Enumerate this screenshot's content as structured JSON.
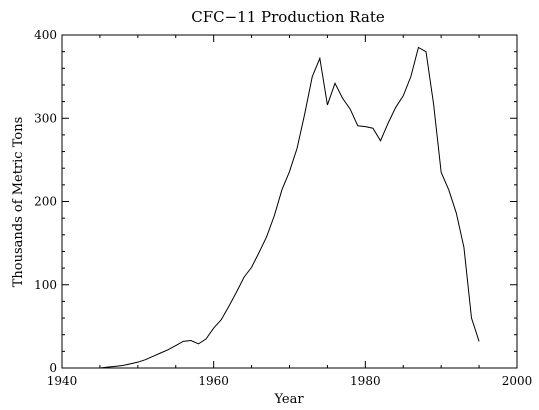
{
  "chart_data": {
    "type": "line",
    "title": "CFC−11 Production Rate",
    "xlabel": "Year",
    "ylabel": "Thousands of Metric Tons",
    "xlim": [
      1940,
      2000
    ],
    "ylim": [
      0,
      400
    ],
    "x_ticks": [
      1940,
      1960,
      1980,
      2000
    ],
    "y_ticks": [
      0,
      100,
      200,
      300,
      400
    ],
    "grid": false,
    "series": [
      {
        "x": [
          1940,
          1941,
          1942,
          1943,
          1944,
          1945,
          1946,
          1947,
          1948,
          1949,
          1950,
          1951,
          1952,
          1953,
          1954,
          1955,
          1956,
          1957,
          1958,
          1959,
          1960,
          1961,
          1962,
          1963,
          1964,
          1965,
          1966,
          1967,
          1968,
          1969,
          1970,
          1971,
          1972,
          1973,
          1974,
          1975,
          1976,
          1977,
          1978,
          1979,
          1980,
          1981,
          1982,
          1983,
          1984,
          1985,
          1986,
          1987,
          1988,
          1989,
          1990,
          1991,
          1992,
          1993,
          1994,
          1995
        ],
        "values": [
          0,
          0,
          0,
          0,
          0,
          0,
          1,
          2,
          3,
          5,
          7,
          10,
          14,
          18,
          22,
          27,
          32,
          33,
          29,
          35,
          48,
          58,
          74,
          91,
          109,
          121,
          139,
          158,
          183,
          214,
          236,
          264,
          305,
          350,
          372,
          316,
          342,
          324,
          311,
          291,
          290,
          288,
          273,
          294,
          313,
          327,
          350,
          385,
          380,
          317,
          235,
          214,
          186,
          145,
          60,
          32
        ]
      }
    ]
  }
}
